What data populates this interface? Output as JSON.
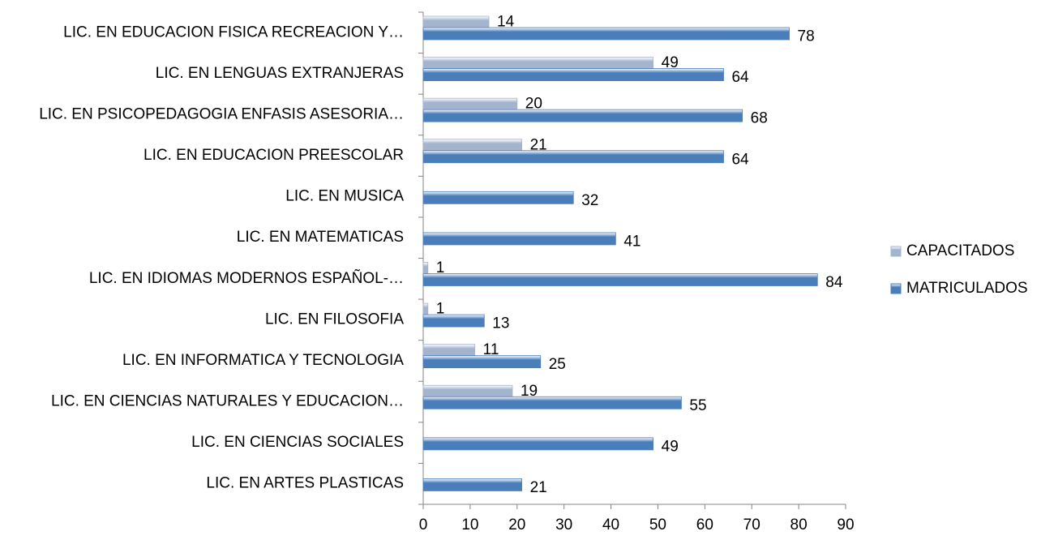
{
  "chart_data": {
    "type": "hbar",
    "categories": [
      "LIC. EN EDUCACION FISICA RECREACION Y…",
      "LIC. EN LENGUAS EXTRANJERAS",
      "LIC. EN PSICOPEDAGOGIA ENFASIS ASESORIA…",
      "LIC. EN EDUCACION PREESCOLAR",
      "LIC. EN MUSICA",
      "LIC. EN MATEMATICAS",
      "LIC. EN IDIOMAS MODERNOS ESPAÑOL-…",
      "LIC. EN FILOSOFIA",
      "LIC. EN INFORMATICA Y TECNOLOGIA",
      "LIC.  EN CIENCIAS NATURALES Y EDUCACION…",
      "LIC. EN CIENCIAS SOCIALES",
      "LIC. EN ARTES PLASTICAS"
    ],
    "series": [
      {
        "name": "CAPACITADOS",
        "color": "#a3b4cf",
        "values": [
          14,
          49,
          20,
          21,
          null,
          null,
          1,
          1,
          11,
          19,
          null,
          null
        ]
      },
      {
        "name": "MATRICULADOS",
        "color": "#4a7ebb",
        "values": [
          78,
          64,
          68,
          64,
          32,
          41,
          84,
          13,
          25,
          55,
          49,
          21
        ]
      }
    ],
    "xlim": [
      0,
      90
    ],
    "xticks": [
      0,
      10,
      20,
      30,
      40,
      50,
      60,
      70,
      80,
      90
    ],
    "legend": "right"
  }
}
